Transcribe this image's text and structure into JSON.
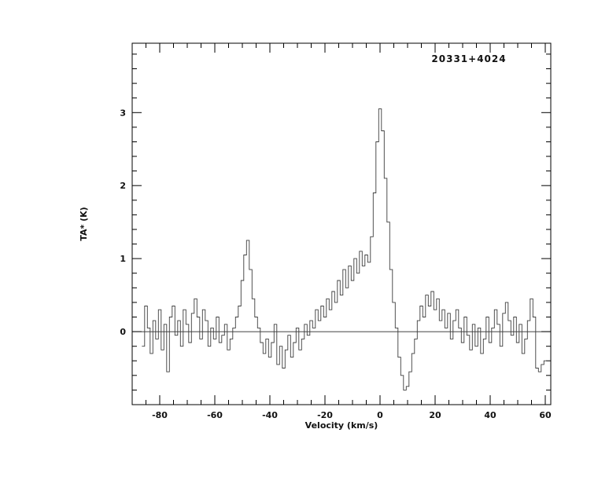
{
  "colors": {
    "line": "#3d3d3d",
    "axis": "#000000",
    "text": "#111111",
    "background": "#ffffff"
  },
  "chart_data": {
    "type": "line",
    "line_style": "histogram-step",
    "title": "20331+4024",
    "xlabel": "Velocity (km/s)",
    "ylabel": "TA* (K)",
    "xlim": [
      -90,
      62
    ],
    "ylim": [
      -1.0,
      3.95
    ],
    "x_ticks_labeled": [
      -80,
      -60,
      -40,
      -20,
      0,
      20,
      40,
      60
    ],
    "y_ticks_labeled": [
      0,
      1,
      2,
      3
    ],
    "x_minor_tick_step": 5,
    "y_minor_tick_step": 0.2,
    "grid": false,
    "legend": false,
    "zero_line": true,
    "x_start": -86,
    "x_step": 1,
    "values": [
      -0.2,
      0.35,
      0.05,
      -0.3,
      0.15,
      -0.1,
      0.3,
      -0.25,
      0.1,
      -0.55,
      0.2,
      0.35,
      -0.05,
      0.15,
      -0.2,
      0.3,
      0.1,
      -0.15,
      0.25,
      0.45,
      0.2,
      -0.1,
      0.3,
      0.15,
      -0.2,
      0.05,
      -0.1,
      0.2,
      -0.15,
      -0.05,
      0.1,
      -0.25,
      -0.1,
      0.05,
      0.2,
      0.35,
      0.7,
      1.05,
      1.25,
      0.85,
      0.45,
      0.2,
      0.05,
      -0.15,
      -0.3,
      -0.1,
      -0.35,
      -0.15,
      0.1,
      -0.45,
      -0.2,
      -0.5,
      -0.25,
      -0.05,
      -0.35,
      -0.15,
      0.05,
      -0.25,
      -0.1,
      0.1,
      -0.05,
      0.15,
      0.05,
      0.3,
      0.15,
      0.35,
      0.2,
      0.45,
      0.3,
      0.55,
      0.4,
      0.7,
      0.5,
      0.85,
      0.6,
      0.9,
      0.7,
      1.0,
      0.8,
      1.1,
      0.9,
      1.05,
      0.95,
      1.3,
      1.9,
      2.6,
      3.05,
      2.75,
      2.1,
      1.5,
      0.85,
      0.4,
      0.05,
      -0.35,
      -0.6,
      -0.8,
      -0.75,
      -0.55,
      -0.3,
      -0.1,
      0.15,
      0.35,
      0.2,
      0.5,
      0.35,
      0.55,
      0.3,
      0.45,
      0.15,
      0.3,
      0.05,
      0.25,
      -0.1,
      0.15,
      0.3,
      0.05,
      -0.15,
      0.2,
      -0.05,
      -0.25,
      0.1,
      -0.2,
      0.05,
      -0.3,
      -0.1,
      0.2,
      -0.15,
      0.05,
      0.3,
      0.1,
      -0.2,
      0.25,
      0.4,
      0.15,
      -0.05,
      0.2,
      -0.15,
      0.1,
      -0.3,
      -0.1,
      0.15,
      0.45,
      0.2,
      -0.5,
      -0.55,
      -0.45,
      -0.4
    ]
  }
}
